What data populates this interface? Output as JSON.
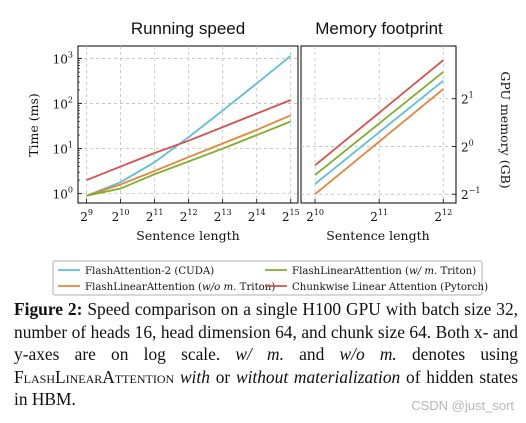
{
  "chart_data": [
    {
      "type": "line",
      "title": "Running speed",
      "xlabel": "Sentence length",
      "ylabel": "Time (ms)",
      "xscale": "log2",
      "yscale": "log10",
      "x": [
        512,
        1024,
        2048,
        4096,
        8192,
        16384,
        32768
      ],
      "xticks": [
        {
          "v": 512,
          "b": "2",
          "e": "9"
        },
        {
          "v": 1024,
          "b": "2",
          "e": "10"
        },
        {
          "v": 2048,
          "b": "2",
          "e": "11"
        },
        {
          "v": 4096,
          "b": "2",
          "e": "12"
        },
        {
          "v": 8192,
          "b": "2",
          "e": "13"
        },
        {
          "v": 16384,
          "b": "2",
          "e": "14"
        },
        {
          "v": 32768,
          "b": "2",
          "e": "15"
        }
      ],
      "yticks": [
        {
          "v": 1,
          "b": "10",
          "e": "0"
        },
        {
          "v": 10,
          "b": "10",
          "e": "1"
        },
        {
          "v": 100,
          "b": "10",
          "e": "2"
        },
        {
          "v": 1000,
          "b": "10",
          "e": "3"
        }
      ],
      "grid": true,
      "series": [
        {
          "name": "FlashAttention-2 (CUDA)",
          "color": "#5bbfd9",
          "values": [
            0.9,
            1.8,
            5.0,
            18,
            70,
            280,
            1150
          ]
        },
        {
          "name": "FlashLinearAttention (w/o m. Triton)",
          "color": "#e8833a",
          "values": [
            0.9,
            1.6,
            3.2,
            6.5,
            13,
            26,
            55
          ]
        },
        {
          "name": "FlashLinearAttention (w/ m. Triton)",
          "color": "#7fae2a",
          "values": [
            0.9,
            1.3,
            2.7,
            5.2,
            10,
            20,
            40
          ]
        },
        {
          "name": "Chunkwise Linear Attention (Pytorch)",
          "color": "#d9504a",
          "values": [
            2.0,
            4.0,
            8.0,
            15,
            30,
            60,
            120
          ]
        }
      ]
    },
    {
      "type": "line",
      "title": "Memory footprint",
      "xlabel": "Sentence length",
      "ylabel": "GPU memory (GB)",
      "xscale": "log2",
      "yscale": "log2",
      "x": [
        1024,
        4096
      ],
      "xticks": [
        {
          "v": 1024,
          "b": "2",
          "e": "10"
        },
        {
          "v": 2048,
          "b": "2",
          "e": "11"
        },
        {
          "v": 4096,
          "b": "2",
          "e": "12"
        }
      ],
      "yticks": [
        {
          "v": 0.5,
          "b": "2",
          "e": "−1"
        },
        {
          "v": 1,
          "b": "2",
          "e": "0"
        },
        {
          "v": 2,
          "b": "2",
          "e": "1"
        }
      ],
      "grid": true,
      "series": [
        {
          "name": "FlashAttention-2 (CUDA)",
          "color": "#5bbfd9",
          "values": [
            0.58,
            2.6
          ]
        },
        {
          "name": "FlashLinearAttention (w/o m. Triton)",
          "color": "#e8833a",
          "values": [
            0.5,
            2.3
          ]
        },
        {
          "name": "FlashLinearAttention (w/ m. Triton)",
          "color": "#7fae2a",
          "values": [
            0.66,
            2.95
          ]
        },
        {
          "name": "Chunkwise Linear Attention (Pytorch)",
          "color": "#d9504a",
          "values": [
            0.76,
            3.5
          ]
        }
      ]
    }
  ],
  "legend": {
    "placement": "bottom",
    "items": [
      {
        "pre": "FlashAttention-2 (CUDA)",
        "ital": "",
        "post": "",
        "color": "#5bbfd9"
      },
      {
        "pre": "FlashLinearAttention (",
        "ital": "w/ m.",
        "post": " Triton)",
        "color": "#7fae2a"
      },
      {
        "pre": "FlashLinearAttention (",
        "ital": "w/o m.",
        "post": " Triton)",
        "color": "#e8833a"
      },
      {
        "pre": "Chunkwise Linear Attention (Pytorch)",
        "ital": "",
        "post": "",
        "color": "#d9504a"
      }
    ]
  },
  "caption": {
    "label": "Figure 2:",
    "text1": " Speed comparison on a single H100 GPU with batch size 32, number of heads 16, head dimension 64, and chunk size 64. Both x- and y-axes are on log scale. ",
    "wm": "w/ m.",
    "and": " and ",
    "wom": "w/o m.",
    "text2": " denotes using ",
    "fla": "FlashLinearAttention",
    "with": "with",
    "or": " or ",
    "without": "without materialization",
    "text3": " of hidden states in HBM."
  },
  "watermark": "CSDN @just_sort"
}
